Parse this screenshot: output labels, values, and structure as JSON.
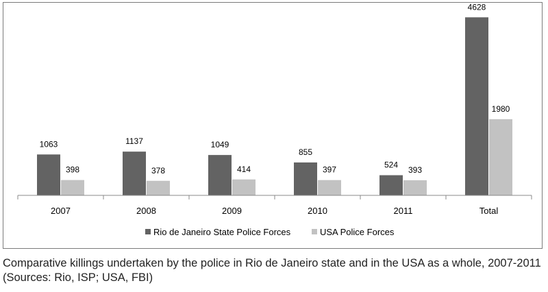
{
  "chart_data": {
    "type": "bar",
    "categories": [
      "2007",
      "2008",
      "2009",
      "2010",
      "2011",
      "Total"
    ],
    "series": [
      {
        "name": "Rio de Janeiro State Police Forces",
        "color": "#636363",
        "values": [
          1063,
          1137,
          1049,
          855,
          524,
          4628
        ]
      },
      {
        "name": "USA Police Forces",
        "color": "#c2c2c2",
        "values": [
          398,
          378,
          414,
          397,
          393,
          1980
        ]
      }
    ],
    "title": "",
    "xlabel": "",
    "ylabel": "",
    "ylim": [
      0,
      4900
    ],
    "grid": false,
    "legend_position": "bottom"
  },
  "caption": "Comparative killings undertaken by the police in Rio de Janeiro state and in the USA as a whole, 2007-2011 (Sources: Rio, ISP; USA, FBI)"
}
